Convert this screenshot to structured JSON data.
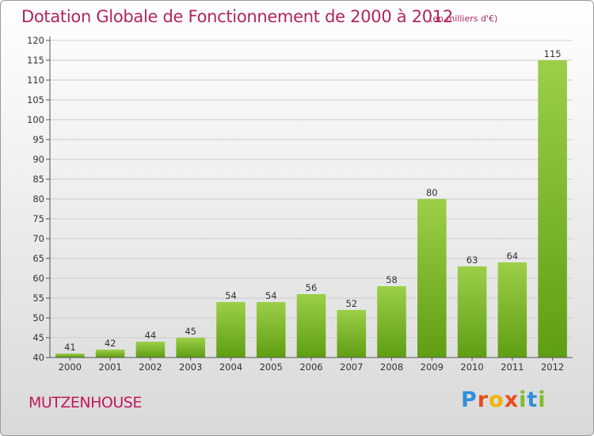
{
  "header": {
    "title": "Dotation Globale de Fonctionnement de 2000 à 2012",
    "subtitle": "(en milliers d'€)"
  },
  "footer": {
    "commune": "MUTZENHOUSE",
    "logo_letters": [
      "P",
      "r",
      "o",
      "x",
      "i",
      "t",
      "i"
    ],
    "logo_colors": [
      "#2f8fd8",
      "#e84e1b",
      "#f2b400",
      "#e84e1b",
      "#7bbf2a",
      "#2f8fd8",
      "#7bbf2a"
    ]
  },
  "chart_data": {
    "type": "bar",
    "categories": [
      "2000",
      "2001",
      "2002",
      "2003",
      "2004",
      "2005",
      "2006",
      "2007",
      "2008",
      "2009",
      "2010",
      "2011",
      "2012"
    ],
    "values": [
      41,
      42,
      44,
      45,
      54,
      54,
      56,
      52,
      58,
      80,
      63,
      64,
      115
    ],
    "ylim": [
      40,
      120
    ],
    "yticks": [
      40,
      45,
      50,
      55,
      60,
      65,
      70,
      75,
      80,
      85,
      90,
      95,
      100,
      105,
      110,
      115,
      120
    ],
    "grid": true,
    "bar_color_top": "#9ccf48",
    "bar_color_bottom": "#5e9e12"
  }
}
